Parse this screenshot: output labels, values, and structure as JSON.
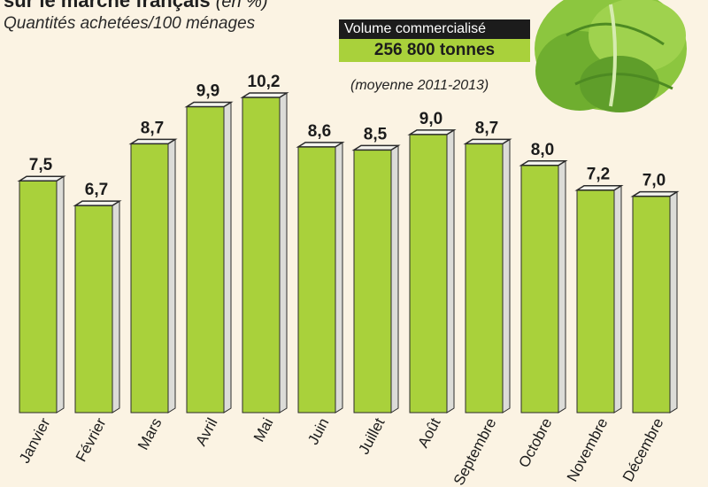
{
  "header": {
    "title_partial": "sur le marché français",
    "title_unit": "(en %)",
    "subtitle": "Quantités achetées/100 ménages"
  },
  "badge": {
    "label": "Volume commercialisé",
    "value": "256 800 tonnes",
    "period": "(moyenne 2011-2013)"
  },
  "colors": {
    "bar_front": "#a9d13b",
    "bar_side": "#dcdcd8",
    "bar_top": "#f4f4ee",
    "bar_outline": "#2b2b2b",
    "lettuce": "#7cbf3a"
  },
  "chart_data": {
    "type": "bar",
    "title": "",
    "xlabel": "",
    "ylabel": "",
    "ylim": [
      0,
      10.2
    ],
    "categories": [
      "Janvier",
      "Février",
      "Mars",
      "Avril",
      "Mai",
      "Juin",
      "Juillet",
      "Août",
      "Septembre",
      "Octobre",
      "Novembre",
      "Décembre"
    ],
    "values": [
      7.5,
      6.7,
      8.7,
      9.9,
      10.2,
      8.6,
      8.5,
      9.0,
      8.7,
      8.0,
      7.2,
      7.0
    ],
    "value_labels": [
      "7,5",
      "6,7",
      "8,7",
      "9,9",
      "10,2",
      "8,6",
      "8,5",
      "9,0",
      "8,7",
      "8,0",
      "7,2",
      "7,0"
    ],
    "grid": false,
    "legend": "none"
  }
}
